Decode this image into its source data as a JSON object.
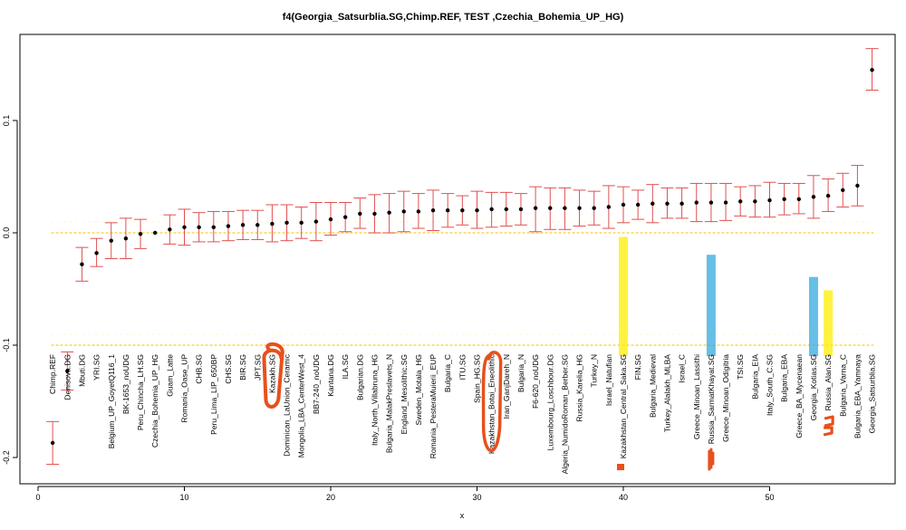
{
  "chart_data": {
    "type": "scatter",
    "title": "f4(Georgia_Satsurblia.SG,Chimp.REF, TEST ,Czechia_Bohemia_UP_HG)",
    "xlabel": "x",
    "ylabel": "",
    "xlim": [
      0,
      58
    ],
    "ylim": [
      -0.21,
      0.17
    ],
    "xticks": [
      0,
      10,
      20,
      30,
      40,
      50
    ],
    "yticks": [
      -0.2,
      -0.1,
      0.0,
      0.1
    ],
    "ytick_labels": [
      "-0.2",
      "-0.1",
      "0.0",
      "0.1"
    ],
    "ref_lines": [
      0.0,
      -0.1
    ],
    "ref_line_color": "#ffcc33",
    "point_color": "#000000",
    "errorbar_color": "#e05050",
    "highlight_colors": {
      "orange": "#e8501a",
      "yellow": "#ffee00",
      "blue": "#33aadd"
    },
    "points": [
      {
        "x": 1,
        "label": "Chimp.REF",
        "y": -0.187,
        "lo": -0.206,
        "hi": -0.168
      },
      {
        "x": 2,
        "label": "Denisova.DG",
        "y": -0.123,
        "lo": -0.14,
        "hi": -0.106
      },
      {
        "x": 3,
        "label": "Mbuti.DG",
        "y": -0.028,
        "lo": -0.043,
        "hi": -0.013
      },
      {
        "x": 4,
        "label": "YRI.SG",
        "y": -0.018,
        "lo": -0.03,
        "hi": -0.005
      },
      {
        "x": 5,
        "label": "Belgium_UP_GoyetQ116_1",
        "y": -0.007,
        "lo": -0.023,
        "hi": 0.009
      },
      {
        "x": 6,
        "label": "BK-1653_noUDG",
        "y": -0.005,
        "lo": -0.023,
        "hi": 0.013
      },
      {
        "x": 7,
        "label": "Peru_Chincha_LH.SG",
        "y": -0.001,
        "lo": -0.014,
        "hi": 0.012
      },
      {
        "x": 8,
        "label": "Czechia_Bohemia_UP_HG",
        "y": 0.0,
        "lo": 0.0,
        "hi": 0.0
      },
      {
        "x": 9,
        "label": "Guam_Latte",
        "y": 0.003,
        "lo": -0.01,
        "hi": 0.016
      },
      {
        "x": 10,
        "label": "Romania_Oase_UP",
        "y": 0.005,
        "lo": -0.011,
        "hi": 0.021
      },
      {
        "x": 11,
        "label": "CHB.SG",
        "y": 0.005,
        "lo": -0.008,
        "hi": 0.018
      },
      {
        "x": 12,
        "label": "Peru_Lima_LIP_650BP",
        "y": 0.005,
        "lo": -0.008,
        "hi": 0.019
      },
      {
        "x": 13,
        "label": "CHS.SG",
        "y": 0.006,
        "lo": -0.007,
        "hi": 0.019
      },
      {
        "x": 14,
        "label": "BIR.SG",
        "y": 0.007,
        "lo": -0.006,
        "hi": 0.02
      },
      {
        "x": 15,
        "label": "JPT.SG",
        "y": 0.007,
        "lo": -0.006,
        "hi": 0.02
      },
      {
        "x": 16,
        "label": "Kazakh.SG",
        "y": 0.008,
        "lo": -0.008,
        "hi": 0.025
      },
      {
        "x": 17,
        "label": "Dominican_LaUnion_Ceramic",
        "y": 0.009,
        "lo": -0.007,
        "hi": 0.025
      },
      {
        "x": 18,
        "label": "Mongolia_LBA_CenterWest_4",
        "y": 0.009,
        "lo": -0.005,
        "hi": 0.023
      },
      {
        "x": 19,
        "label": "BB7-240_noUDG",
        "y": 0.01,
        "lo": -0.007,
        "hi": 0.027
      },
      {
        "x": 20,
        "label": "Kantana.DG",
        "y": 0.012,
        "lo": -0.002,
        "hi": 0.027
      },
      {
        "x": 21,
        "label": "ILA.SG",
        "y": 0.014,
        "lo": 0.001,
        "hi": 0.027
      },
      {
        "x": 22,
        "label": "Bulgarian.DG",
        "y": 0.017,
        "lo": 0.004,
        "hi": 0.031
      },
      {
        "x": 23,
        "label": "Italy_North_Villabruna_HG",
        "y": 0.017,
        "lo": 0.0,
        "hi": 0.034
      },
      {
        "x": 24,
        "label": "Bulgaria_MalakPreslavets_N",
        "y": 0.018,
        "lo": 0.0,
        "hi": 0.035
      },
      {
        "x": 25,
        "label": "England_Mesolithic.SG",
        "y": 0.019,
        "lo": 0.001,
        "hi": 0.037
      },
      {
        "x": 26,
        "label": "Sweden_Motala_HG",
        "y": 0.019,
        "lo": 0.004,
        "hi": 0.035
      },
      {
        "x": 27,
        "label": "Romania_PesteraMuierii_EUP",
        "y": 0.02,
        "lo": 0.002,
        "hi": 0.038
      },
      {
        "x": 28,
        "label": "Bulgaria_C",
        "y": 0.02,
        "lo": 0.005,
        "hi": 0.035
      },
      {
        "x": 29,
        "label": "ITU.SG",
        "y": 0.02,
        "lo": 0.007,
        "hi": 0.033
      },
      {
        "x": 30,
        "label": "Spain_HG.SG",
        "y": 0.02,
        "lo": 0.004,
        "hi": 0.037
      },
      {
        "x": 31,
        "label": "Kazakhstan_Botai_Eneolithic",
        "y": 0.021,
        "lo": 0.005,
        "hi": 0.036
      },
      {
        "x": 32,
        "label": "Iran_GanjDareh_N",
        "y": 0.021,
        "lo": 0.006,
        "hi": 0.036
      },
      {
        "x": 33,
        "label": "Bulgaria_N",
        "y": 0.021,
        "lo": 0.007,
        "hi": 0.035
      },
      {
        "x": 34,
        "label": "F6-620_noUDG",
        "y": 0.022,
        "lo": 0.001,
        "hi": 0.041
      },
      {
        "x": 35,
        "label": "Luxembourg_Loschbour.DG",
        "y": 0.022,
        "lo": 0.003,
        "hi": 0.04
      },
      {
        "x": 36,
        "label": "Algeria_NumidoRoman_Berber.SG",
        "y": 0.022,
        "lo": 0.003,
        "hi": 0.04
      },
      {
        "x": 37,
        "label": "Russia_Karelia_HG",
        "y": 0.022,
        "lo": 0.006,
        "hi": 0.038
      },
      {
        "x": 38,
        "label": "Turkey_N",
        "y": 0.022,
        "lo": 0.007,
        "hi": 0.037
      },
      {
        "x": 39,
        "label": "Israel_Natufian",
        "y": 0.023,
        "lo": 0.004,
        "hi": 0.042
      },
      {
        "x": 40,
        "label": "Kazakhstan_Central_Saka.SG",
        "y": 0.025,
        "lo": 0.009,
        "hi": 0.041
      },
      {
        "x": 41,
        "label": "FIN.SG",
        "y": 0.025,
        "lo": 0.012,
        "hi": 0.038
      },
      {
        "x": 42,
        "label": "Bulgaria_Medieval",
        "y": 0.026,
        "lo": 0.009,
        "hi": 0.043
      },
      {
        "x": 43,
        "label": "Turkey_Alalakh_MLBA",
        "y": 0.026,
        "lo": 0.013,
        "hi": 0.04
      },
      {
        "x": 44,
        "label": "Israel_C",
        "y": 0.026,
        "lo": 0.013,
        "hi": 0.04
      },
      {
        "x": 45,
        "label": "Greece_Minoan_Lassithi",
        "y": 0.027,
        "lo": 0.01,
        "hi": 0.044
      },
      {
        "x": 46,
        "label": "Russia_SarmatKhayat.SG",
        "y": 0.027,
        "lo": 0.01,
        "hi": 0.044
      },
      {
        "x": 47,
        "label": "Greece_Minoan_Odigitria",
        "y": 0.027,
        "lo": 0.011,
        "hi": 0.044
      },
      {
        "x": 48,
        "label": "TSI.SG",
        "y": 0.028,
        "lo": 0.015,
        "hi": 0.041
      },
      {
        "x": 49,
        "label": "Bulgaria_EIA",
        "y": 0.028,
        "lo": 0.014,
        "hi": 0.042
      },
      {
        "x": 50,
        "label": "Italy_South_C.SG",
        "y": 0.029,
        "lo": 0.014,
        "hi": 0.045
      },
      {
        "x": 51,
        "label": "Bulgaria_EBA",
        "y": 0.03,
        "lo": 0.016,
        "hi": 0.044
      },
      {
        "x": 52,
        "label": "Greece_BA_Mycenaean",
        "y": 0.03,
        "lo": 0.017,
        "hi": 0.044
      },
      {
        "x": 53,
        "label": "Georgia_Kotias.SG",
        "y": 0.032,
        "lo": 0.013,
        "hi": 0.051
      },
      {
        "x": 54,
        "label": "Russia_Alan.SG",
        "y": 0.033,
        "lo": 0.019,
        "hi": 0.048
      },
      {
        "x": 55,
        "label": "Bulgaria_Varna_C",
        "y": 0.038,
        "lo": 0.023,
        "hi": 0.053
      },
      {
        "x": 56,
        "label": "Bulgaria_EBA_Yamnaya",
        "y": 0.042,
        "lo": 0.024,
        "hi": 0.06
      },
      {
        "x": 57,
        "label": "Georgia_Satsurblia.SG",
        "y": 0.145,
        "lo": 0.127,
        "hi": 0.164
      }
    ],
    "highlights": [
      {
        "x": 16,
        "style": "loop",
        "color": "orange"
      },
      {
        "x": 31,
        "style": "loop",
        "color": "orange"
      },
      {
        "x": 40,
        "style": "marker",
        "color": "yellow"
      },
      {
        "x": 40,
        "style": "square",
        "color": "orange"
      },
      {
        "x": 46,
        "style": "marker",
        "color": "blue"
      },
      {
        "x": 46,
        "style": "squiggle",
        "color": "orange"
      },
      {
        "x": 53,
        "style": "marker",
        "color": "blue"
      },
      {
        "x": 54,
        "style": "marker",
        "color": "yellow"
      },
      {
        "x": 54,
        "style": "squiggle",
        "color": "orange"
      }
    ]
  }
}
